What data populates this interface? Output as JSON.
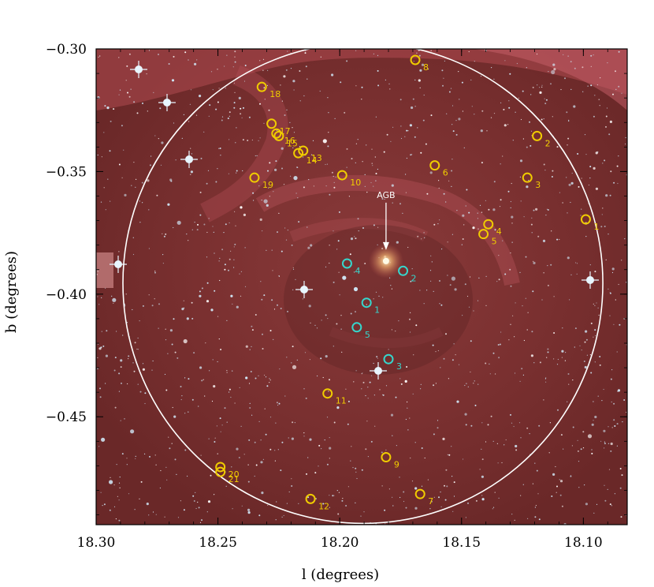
{
  "figure": {
    "xlabel": "l (degrees)",
    "ylabel": "b (degrees)",
    "x_ticks": [
      {
        "value": 18.3,
        "label": "18.30"
      },
      {
        "value": 18.25,
        "label": "18.25"
      },
      {
        "value": 18.2,
        "label": "18.20"
      },
      {
        "value": 18.15,
        "label": "18.15"
      },
      {
        "value": 18.1,
        "label": "18.10"
      }
    ],
    "y_ticks": [
      {
        "value": -0.3,
        "label": "−0.30"
      },
      {
        "value": -0.35,
        "label": "−0.35"
      },
      {
        "value": -0.4,
        "label": "−0.40"
      },
      {
        "value": -0.45,
        "label": "−0.45"
      }
    ],
    "xlim": [
      18.3,
      18.082
    ],
    "ylim": [
      -0.3,
      -0.494
    ],
    "agb_label": "AGB",
    "agb_position": {
      "l": 18.181,
      "b": -0.3865
    },
    "big_circle": {
      "center_l": 18.1905,
      "center_b": -0.3955,
      "radius_deg": 0.0985
    },
    "colors": {
      "yellow": "#f0cc00",
      "cyan": "#36d6cc",
      "circle": "#ffffff",
      "background": "#6e2a2a"
    },
    "yellow_sources": [
      {
        "label": "1",
        "l": 18.099,
        "b": -0.3695
      },
      {
        "label": "2",
        "l": 18.119,
        "b": -0.3355
      },
      {
        "label": "3",
        "l": 18.123,
        "b": -0.3525
      },
      {
        "label": "4",
        "l": 18.139,
        "b": -0.3715
      },
      {
        "label": "5",
        "l": 18.141,
        "b": -0.3755
      },
      {
        "label": "6",
        "l": 18.161,
        "b": -0.3475
      },
      {
        "label": "7",
        "l": 18.167,
        "b": -0.4815
      },
      {
        "label": "8",
        "l": 18.169,
        "b": -0.3045
      },
      {
        "label": "9",
        "l": 18.181,
        "b": -0.4665
      },
      {
        "label": "10",
        "l": 18.199,
        "b": -0.3515
      },
      {
        "label": "11",
        "l": 18.205,
        "b": -0.4405
      },
      {
        "label": "12",
        "l": 18.212,
        "b": -0.4835
      },
      {
        "label": "13",
        "l": 18.215,
        "b": -0.3415
      },
      {
        "label": "14",
        "l": 18.217,
        "b": -0.3425
      },
      {
        "label": "15",
        "l": 18.225,
        "b": -0.3355
      },
      {
        "label": "16",
        "l": 18.226,
        "b": -0.3345
      },
      {
        "label": "17",
        "l": 18.228,
        "b": -0.3305
      },
      {
        "label": "18",
        "l": 18.232,
        "b": -0.3155
      },
      {
        "label": "19",
        "l": 18.235,
        "b": -0.3525
      },
      {
        "label": "20",
        "l": 18.249,
        "b": -0.4705
      },
      {
        "label": "21",
        "l": 18.249,
        "b": -0.4725
      }
    ],
    "cyan_sources": [
      {
        "label": "1",
        "l": 18.189,
        "b": -0.4035
      },
      {
        "label": "2",
        "l": 18.174,
        "b": -0.3905
      },
      {
        "label": "3",
        "l": 18.18,
        "b": -0.4265
      },
      {
        "label": "4",
        "l": 18.197,
        "b": -0.3875
      },
      {
        "label": "5",
        "l": 18.193,
        "b": -0.4135
      }
    ]
  }
}
